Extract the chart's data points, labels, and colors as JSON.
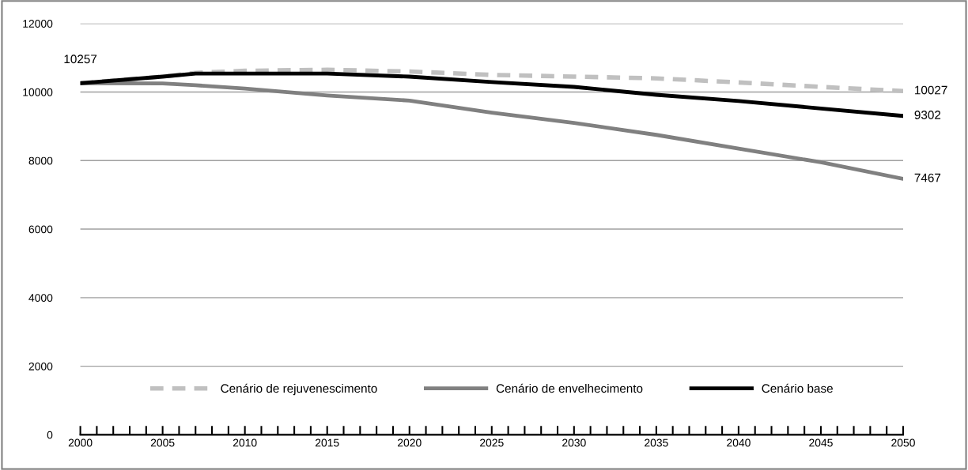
{
  "chart_data": {
    "type": "line",
    "x": [
      2000,
      2005,
      2007,
      2010,
      2015,
      2020,
      2025,
      2030,
      2035,
      2040,
      2045,
      2050
    ],
    "series": [
      {
        "name": "Cenário de rejuvenescimento",
        "color": "#c0c0c0",
        "line_style": "dashed",
        "values": [
          10260,
          10450,
          10560,
          10620,
          10650,
          10600,
          10500,
          10450,
          10400,
          10280,
          10150,
          10027
        ],
        "value_labels": [
          null,
          null,
          null,
          null,
          null,
          null,
          null,
          null,
          null,
          null,
          null,
          "10027"
        ]
      },
      {
        "name": "Cenário de envelhecimento",
        "color": "#808080",
        "line_style": "solid",
        "values": [
          10260,
          10250,
          10200,
          10100,
          9900,
          9750,
          9400,
          9100,
          8750,
          8350,
          7950,
          7467
        ],
        "value_labels": [
          null,
          null,
          null,
          null,
          null,
          null,
          null,
          null,
          null,
          null,
          null,
          "7467"
        ]
      },
      {
        "name": "Cenário base",
        "color": "#000000",
        "line_style": "solid",
        "values": [
          10257,
          10450,
          10540,
          10540,
          10540,
          10450,
          10290,
          10150,
          9920,
          9740,
          9520,
          9302
        ],
        "value_labels": [
          "10257",
          null,
          null,
          null,
          null,
          null,
          null,
          null,
          null,
          null,
          null,
          "9302"
        ]
      }
    ],
    "xlim": [
      2000,
      2050
    ],
    "xticks": [
      2000,
      {
        "value": 2001,
        "label": null
      },
      {
        "value": 2002,
        "label": null
      },
      {
        "value": 2003,
        "label": null
      },
      {
        "value": 2004,
        "label": null
      },
      2005,
      {
        "value": 2006,
        "label": null
      },
      {
        "value": 2007,
        "label": null
      },
      {
        "value": 2008,
        "label": null
      },
      {
        "value": 2009,
        "label": null
      },
      2010,
      {
        "value": 2011,
        "label": null
      },
      {
        "value": 2012,
        "label": null
      },
      {
        "value": 2013,
        "label": null
      },
      {
        "value": 2014,
        "label": null
      },
      2015,
      {
        "value": 2016,
        "label": null
      },
      {
        "value": 2017,
        "label": null
      },
      {
        "value": 2018,
        "label": null
      },
      {
        "value": 2019,
        "label": null
      },
      2020,
      {
        "value": 2021,
        "label": null
      },
      {
        "value": 2022,
        "label": null
      },
      {
        "value": 2023,
        "label": null
      },
      {
        "value": 2024,
        "label": null
      },
      2025,
      {
        "value": 2026,
        "label": null
      },
      {
        "value": 2027,
        "label": null
      },
      {
        "value": 2028,
        "label": null
      },
      {
        "value": 2029,
        "label": null
      },
      2030,
      {
        "value": 2031,
        "label": null
      },
      {
        "value": 2032,
        "label": null
      },
      {
        "value": 2033,
        "label": null
      },
      {
        "value": 2034,
        "label": null
      },
      2035,
      {
        "value": 2036,
        "label": null
      },
      {
        "value": 2037,
        "label": null
      },
      {
        "value": 2038,
        "label": null
      },
      {
        "value": 2039,
        "label": null
      },
      2040,
      {
        "value": 2041,
        "label": null
      },
      {
        "value": 2042,
        "label": null
      },
      {
        "value": 2043,
        "label": null
      },
      {
        "value": 2044,
        "label": null
      },
      2045,
      {
        "value": 2046,
        "label": null
      },
      {
        "value": 2047,
        "label": null
      },
      {
        "value": 2048,
        "label": null
      },
      {
        "value": 2049,
        "label": null
      },
      2050
    ],
    "ylim": [
      0,
      12000
    ],
    "yticks": [
      0,
      2000,
      4000,
      6000,
      8000,
      10000,
      12000
    ],
    "grid": "y",
    "legend": "bottom",
    "marker": "none"
  }
}
